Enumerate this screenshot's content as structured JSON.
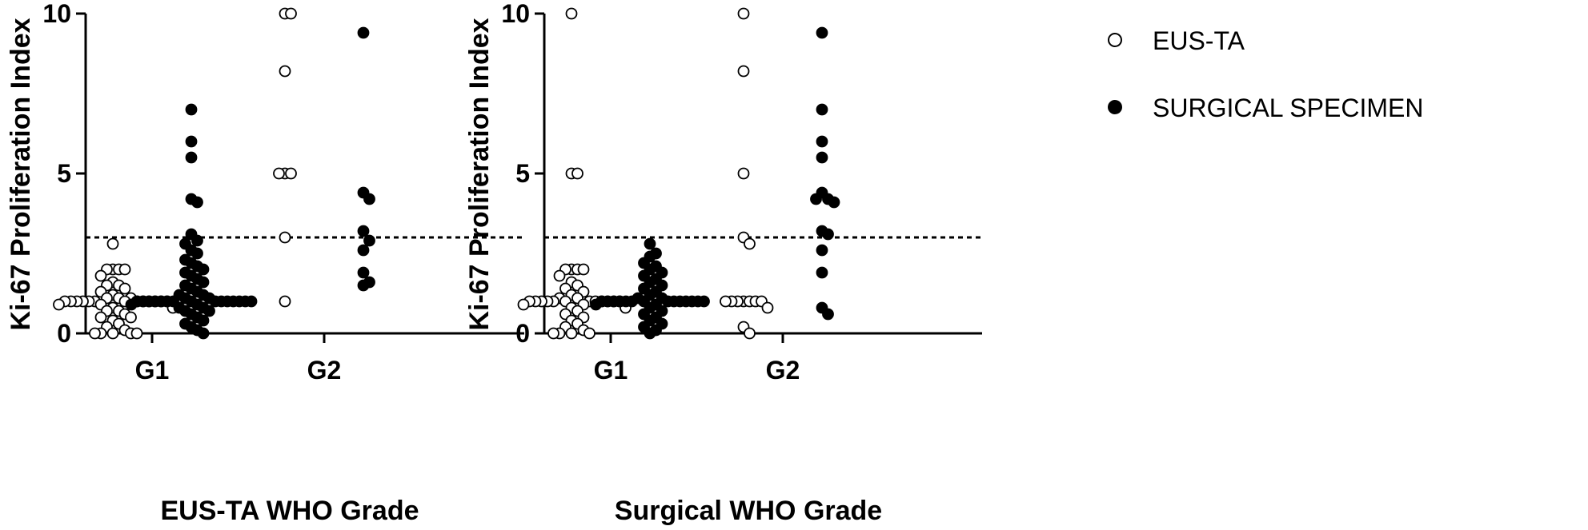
{
  "chart_data": [
    {
      "type": "scatter",
      "title": "",
      "xlabel": "EUS-TA WHO Grade",
      "ylabel": "Ki-67 Proliferation Index",
      "ylim": [
        0,
        10
      ],
      "yticks": [
        "0",
        "5",
        "10"
      ],
      "categories": [
        "G1",
        "G2"
      ],
      "threshold": 3,
      "series": [
        {
          "name": "EUS-TA",
          "color": "#ffffff",
          "points": {
            "G1": [
              2.8,
              2.0,
              2.0,
              2.0,
              2.0,
              1.8,
              1.6,
              1.5,
              1.5,
              1.4,
              1.3,
              1.2,
              1.1,
              1.1,
              1.1,
              1.0,
              1.0,
              1.0,
              1.0,
              1.0,
              1.0,
              1.0,
              1.0,
              1.0,
              1.0,
              1.0,
              1.0,
              1.0,
              0.9,
              0.9,
              0.8,
              0.8,
              0.7,
              0.7,
              0.6,
              0.5,
              0.5,
              0.4,
              0.3,
              0.2,
              0.1,
              0.0,
              0.0,
              0.0,
              0.0,
              0.0
            ],
            "G2": [
              10,
              10,
              8.2,
              5,
              5,
              5,
              3,
              1
            ]
          }
        },
        {
          "name": "SURGICAL SPECIMEN",
          "color": "#000000",
          "points": {
            "G1": [
              7.0,
              6.0,
              5.5,
              4.2,
              4.1,
              3.1,
              2.9,
              2.8,
              2.6,
              2.5,
              2.3,
              2.2,
              2.1,
              2.0,
              1.9,
              1.8,
              1.7,
              1.6,
              1.5,
              1.4,
              1.3,
              1.2,
              1.2,
              1.1,
              1.1,
              1.0,
              1.0,
              1.0,
              1.0,
              1.0,
              1.0,
              1.0,
              1.0,
              1.0,
              1.0,
              1.0,
              1.0,
              1.0,
              1.0,
              1.0,
              0.9,
              0.9,
              0.8,
              0.8,
              0.7,
              0.7,
              0.6,
              0.5,
              0.4,
              0.3,
              0.2,
              0.1,
              0.0
            ],
            "G2": [
              9.4,
              4.4,
              4.2,
              3.2,
              2.9,
              2.6,
              1.9,
              1.6,
              1.5
            ]
          }
        }
      ]
    },
    {
      "type": "scatter",
      "title": "",
      "xlabel": "Surgical WHO Grade",
      "ylabel": "Ki-67 Proliferation Index",
      "ylim": [
        0,
        10
      ],
      "yticks": [
        "0",
        "5",
        "10"
      ],
      "categories": [
        "G1",
        "G2"
      ],
      "threshold": 3,
      "series": [
        {
          "name": "EUS-TA",
          "color": "#ffffff",
          "points": {
            "G1": [
              10,
              5.0,
              5.0,
              2.0,
              2.0,
              2.0,
              2.0,
              1.8,
              1.6,
              1.5,
              1.4,
              1.3,
              1.2,
              1.1,
              1.1,
              1.0,
              1.0,
              1.0,
              1.0,
              1.0,
              1.0,
              1.0,
              1.0,
              1.0,
              1.0,
              1.0,
              1.0,
              0.9,
              0.9,
              0.8,
              0.8,
              0.7,
              0.6,
              0.5,
              0.4,
              0.3,
              0.2,
              0.1,
              0.0,
              0.0,
              0.0,
              0.0
            ],
            "G2": [
              10,
              8.2,
              5.0,
              3.0,
              2.8,
              1.0,
              1.0,
              1.0,
              1.0,
              1.0,
              1.0,
              1.0,
              0.8,
              0.2,
              0.0
            ]
          }
        },
        {
          "name": "SURGICAL SPECIMEN",
          "color": "#000000",
          "points": {
            "G1": [
              2.8,
              2.5,
              2.4,
              2.2,
              2.1,
              2.0,
              1.9,
              1.8,
              1.7,
              1.6,
              1.5,
              1.4,
              1.3,
              1.2,
              1.1,
              1.1,
              1.0,
              1.0,
              1.0,
              1.0,
              1.0,
              1.0,
              1.0,
              1.0,
              1.0,
              1.0,
              1.0,
              1.0,
              1.0,
              1.0,
              0.9,
              0.9,
              0.8,
              0.7,
              0.6,
              0.5,
              0.4,
              0.3,
              0.2,
              0.1,
              0.0
            ],
            "G2": [
              9.4,
              7.0,
              6.0,
              5.5,
              4.4,
              4.2,
              4.2,
              4.1,
              3.2,
              3.1,
              2.6,
              1.9,
              0.8,
              0.6
            ]
          }
        }
      ]
    }
  ],
  "legend": {
    "items": [
      {
        "label": "EUS-TA",
        "fill": "#ffffff"
      },
      {
        "label": "SURGICAL SPECIMEN",
        "fill": "#000000"
      }
    ]
  }
}
